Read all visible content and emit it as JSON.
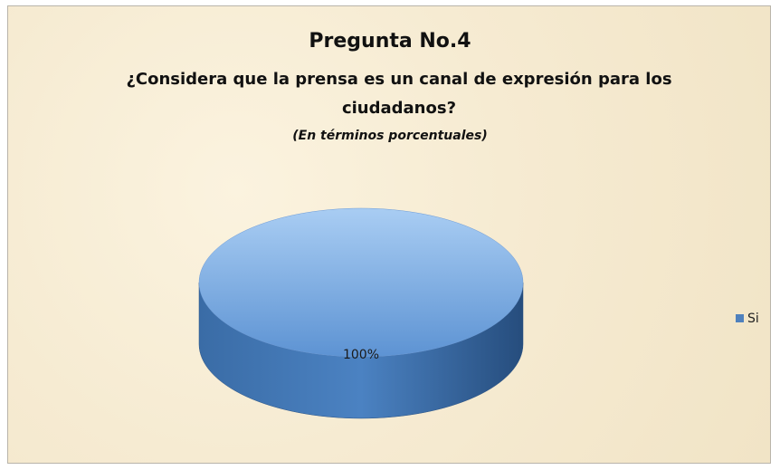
{
  "chart_data": {
    "type": "pie",
    "title": "Pregunta No.4",
    "subtitle": "¿Considera que la prensa es un canal de expresión para los ciudadanos?",
    "note": "(En términos porcentuales)",
    "categories": [
      "Si"
    ],
    "values": [
      100
    ],
    "value_labels": [
      "100%"
    ],
    "colors": [
      "#4f81bd"
    ],
    "legend": "right"
  }
}
